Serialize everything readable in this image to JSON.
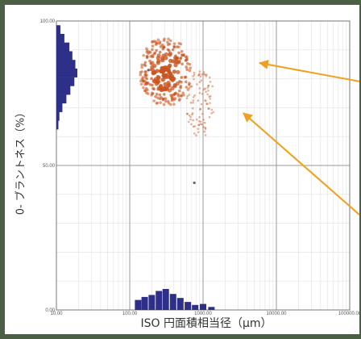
{
  "chart_data": {
    "type": "scatter",
    "xlabel": "ISO 円面積相当径（μm）",
    "ylabel": "0- ブラントネス（%）",
    "x_scale": "log",
    "xlim": [
      10,
      100000
    ],
    "ylim": [
      0,
      100
    ],
    "x_ticks": [
      "10.00",
      "100.00",
      "1000.00",
      "10000.00",
      "100000.00"
    ],
    "y_ticks": [
      "0.00",
      "50.00",
      "100.00"
    ],
    "grid": true,
    "colors": {
      "points": "#c8541f",
      "histogram": "#2e2f88",
      "arrows": "#f0a020"
    },
    "clusters": [
      {
        "x_range": [
          140,
          700
        ],
        "y_range": [
          71,
          94
        ],
        "density": "high",
        "label": ""
      },
      {
        "x_range": [
          600,
          1400
        ],
        "y_range": [
          60,
          83
        ],
        "density": "low",
        "label": ""
      }
    ],
    "x_histogram": [
      {
        "x": 130,
        "count": 10
      },
      {
        "x": 160,
        "count": 13
      },
      {
        "x": 200,
        "count": 15
      },
      {
        "x": 250,
        "count": 19
      },
      {
        "x": 310,
        "count": 21
      },
      {
        "x": 390,
        "count": 16
      },
      {
        "x": 490,
        "count": 12
      },
      {
        "x": 620,
        "count": 8
      },
      {
        "x": 780,
        "count": 5
      },
      {
        "x": 1000,
        "count": 6
      },
      {
        "x": 1300,
        "count": 3
      }
    ],
    "y_histogram": [
      {
        "y": 97,
        "count": 4
      },
      {
        "y": 94,
        "count": 8
      },
      {
        "y": 91,
        "count": 13
      },
      {
        "y": 88,
        "count": 16
      },
      {
        "y": 85,
        "count": 19
      },
      {
        "y": 82,
        "count": 21
      },
      {
        "y": 79,
        "count": 18
      },
      {
        "y": 76,
        "count": 14
      },
      {
        "y": 73,
        "count": 10
      },
      {
        "y": 70,
        "count": 6
      },
      {
        "y": 67,
        "count": 3
      },
      {
        "y": 64,
        "count": 2
      }
    ]
  }
}
